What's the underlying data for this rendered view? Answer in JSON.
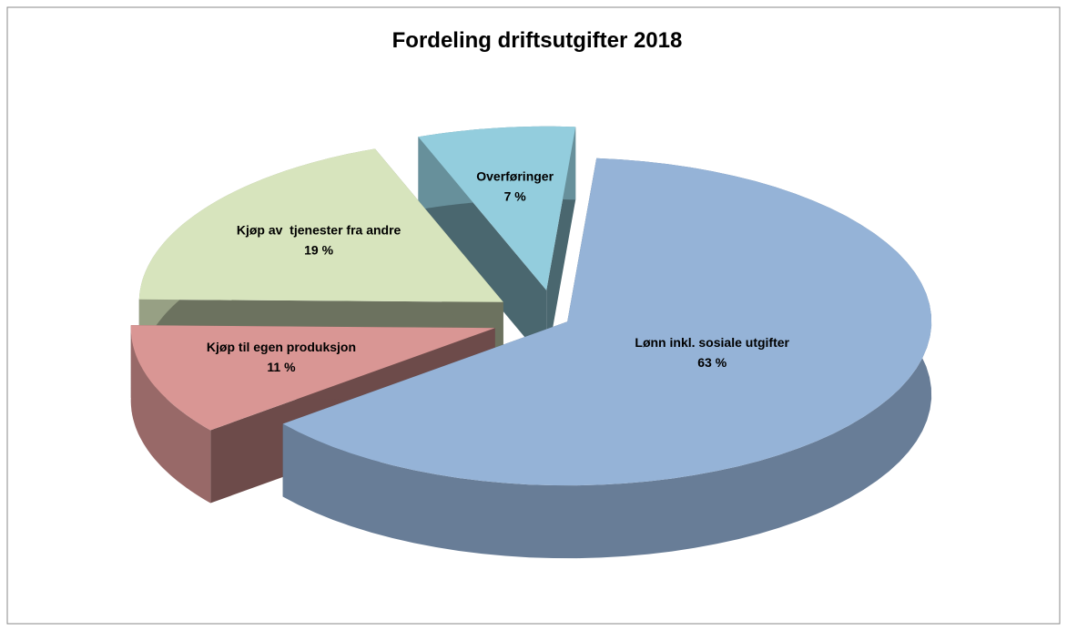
{
  "chart_data": {
    "type": "pie",
    "title": "Fordeling driftsutgifter 2018",
    "categories": [
      "Lønn inkl. sosiale utgifter",
      "Kjøp til egen produksjon",
      "Kjøp av  tjenester fra andre",
      "Overføringer"
    ],
    "values": [
      63,
      11,
      19,
      7
    ],
    "value_labels": [
      "63 %",
      "11 %",
      "19 %",
      "7 %"
    ],
    "colors": [
      "#95b3d7",
      "#d99694",
      "#d7e4bd",
      "#93cddd"
    ]
  }
}
